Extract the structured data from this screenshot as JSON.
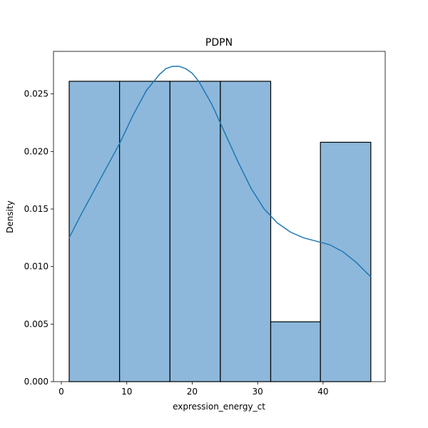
{
  "chart_data": {
    "type": "bar",
    "title": "PDPN",
    "xlabel": "expression_energy_ct",
    "ylabel": "Density",
    "xlim": [
      -1.2,
      49.5
    ],
    "ylim": [
      0,
      0.0287
    ],
    "xticks": [
      0,
      10,
      20,
      30,
      40
    ],
    "yticks": [
      0.0,
      0.005,
      0.01,
      0.015,
      0.02,
      0.025
    ],
    "xtick_labels": [
      "0",
      "10",
      "20",
      "30",
      "40"
    ],
    "ytick_labels": [
      "0.000",
      "0.005",
      "0.010",
      "0.015",
      "0.020",
      "0.025"
    ],
    "bins": [
      {
        "x0": 1.2,
        "x1": 8.9,
        "density": 0.0261
      },
      {
        "x0": 8.9,
        "x1": 16.6,
        "density": 0.0261
      },
      {
        "x0": 16.6,
        "x1": 24.3,
        "density": 0.0261
      },
      {
        "x0": 24.3,
        "x1": 32.0,
        "density": 0.0261
      },
      {
        "x0": 32.0,
        "x1": 39.6,
        "density": 0.0052
      },
      {
        "x0": 39.6,
        "x1": 47.3,
        "density": 0.0208
      }
    ],
    "kde": {
      "x": [
        1.2,
        3.0,
        5.0,
        7.0,
        9.0,
        11.0,
        13.0,
        15.0,
        16.0,
        17.0,
        18.0,
        19.0,
        20.0,
        21.0,
        23.0,
        25.0,
        27.0,
        29.0,
        31.0,
        33.0,
        35.0,
        37.0,
        39.0,
        41.0,
        43.0,
        45.0,
        47.3
      ],
      "y": [
        0.0125,
        0.0145,
        0.0166,
        0.0187,
        0.0208,
        0.0232,
        0.0253,
        0.0267,
        0.0272,
        0.0274,
        0.0274,
        0.0272,
        0.0268,
        0.0261,
        0.0241,
        0.0216,
        0.0191,
        0.0168,
        0.015,
        0.0138,
        0.013,
        0.0125,
        0.0122,
        0.0119,
        0.0113,
        0.0104,
        0.0091
      ]
    },
    "colors": {
      "bar_fill": "#8db8db",
      "bar_edge": "#000000",
      "kde_line": "#1f77b4"
    },
    "grid": false,
    "legend": "none"
  }
}
